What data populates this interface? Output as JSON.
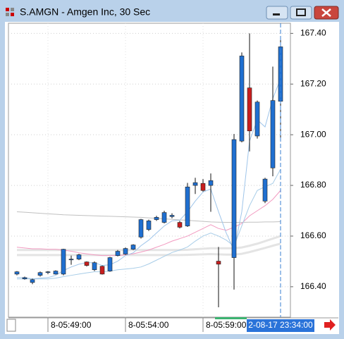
{
  "window": {
    "title": "S.AMGN - Amgen Inc, 30 Sec"
  },
  "chart_data": {
    "type": "candlestick",
    "categories": [
      null,
      null,
      null,
      null,
      "8-05:49:00",
      null,
      null,
      null,
      null,
      null,
      null,
      null,
      null,
      null,
      "8-05:54:00",
      null,
      null,
      null,
      null,
      null,
      null,
      null,
      null,
      null,
      "8-05:59:00",
      null,
      null,
      null,
      null,
      null,
      null,
      null,
      null,
      null,
      null
    ],
    "open": [
      166.45,
      166.431,
      166.417,
      166.445,
      166.456,
      166.45,
      166.45,
      166.506,
      166.509,
      166.498,
      166.467,
      166.481,
      166.462,
      166.523,
      166.529,
      166.548,
      166.596,
      166.626,
      166.665,
      166.654,
      166.677,
      166.654,
      166.64,
      166.8,
      166.808,
      166.8,
      166.501,
      null,
      166.515,
      166.975,
      167.185,
      166.995,
      166.738,
      166.869,
      167.132
    ],
    "high": [
      166.462,
      166.44,
      166.432,
      166.46,
      166.462,
      166.465,
      166.55,
      166.523,
      166.53,
      166.5,
      166.5,
      166.484,
      166.518,
      166.545,
      166.555,
      166.568,
      166.668,
      166.665,
      166.68,
      166.7,
      166.69,
      166.66,
      166.81,
      166.83,
      166.825,
      166.847,
      166.557,
      null,
      167.003,
      167.325,
      167.4,
      167.135,
      166.83,
      167.269,
      167.38
    ],
    "low": [
      166.445,
      166.428,
      166.41,
      166.44,
      166.45,
      166.448,
      166.445,
      166.487,
      166.505,
      166.48,
      166.462,
      166.448,
      166.459,
      166.52,
      166.526,
      166.545,
      166.59,
      166.62,
      166.66,
      166.65,
      166.67,
      166.63,
      166.636,
      166.766,
      166.775,
      166.696,
      166.319,
      null,
      166.389,
      166.97,
      166.934,
      166.985,
      166.73,
      166.836,
      166.989
    ],
    "close": [
      166.459,
      166.436,
      166.428,
      166.456,
      166.459,
      166.462,
      166.548,
      166.509,
      166.526,
      166.484,
      166.495,
      166.45,
      166.515,
      166.54,
      166.551,
      166.565,
      166.665,
      166.66,
      166.674,
      166.693,
      166.682,
      166.635,
      166.794,
      166.811,
      166.78,
      166.819,
      166.489,
      null,
      166.981,
      167.311,
      167.015,
      167.129,
      166.825,
      167.135,
      167.347
    ],
    "up_color": "#1f6fd0",
    "down_color": "#c81e1e",
    "lines": [
      {
        "color": "#e4e4e4",
        "width": 3,
        "values": [
          166.545,
          166.545,
          166.545,
          166.545,
          166.545,
          166.545,
          166.545,
          166.545,
          166.545,
          166.545,
          166.545,
          166.545,
          166.545,
          166.545,
          166.545,
          166.545,
          166.545,
          166.545,
          166.545,
          166.545,
          166.545,
          166.545,
          166.546,
          166.548,
          166.55,
          166.552,
          166.552,
          166.552,
          166.552,
          166.555,
          166.562,
          166.57,
          166.58,
          166.59,
          166.6
        ]
      },
      {
        "color": "#e4e4e4",
        "width": 3,
        "values": [
          166.525,
          166.525,
          166.525,
          166.525,
          166.525,
          166.525,
          166.525,
          166.525,
          166.525,
          166.525,
          166.525,
          166.525,
          166.525,
          166.525,
          166.525,
          166.525,
          166.525,
          166.525,
          166.525,
          166.525,
          166.525,
          166.525,
          166.526,
          166.527,
          166.528,
          166.529,
          166.528,
          166.527,
          166.527,
          166.53,
          166.537,
          166.545,
          166.553,
          166.562,
          166.57
        ]
      },
      {
        "color": "#c0c0c0",
        "width": 1,
        "values": [
          166.696,
          166.694,
          166.692,
          166.69,
          166.688,
          166.686,
          166.684,
          166.683,
          166.682,
          166.681,
          166.68,
          166.679,
          166.678,
          166.677,
          166.676,
          166.675,
          166.674,
          166.672,
          166.67,
          166.668,
          166.666,
          166.664,
          166.662,
          166.66,
          166.658,
          166.656,
          166.655,
          166.654,
          166.654,
          166.654,
          166.655,
          166.655,
          166.656,
          166.656,
          166.657
        ]
      },
      {
        "color": "#f29ac0",
        "width": 1,
        "values": [
          166.556,
          166.553,
          166.55,
          166.55,
          166.548,
          166.548,
          166.545,
          166.54,
          166.534,
          166.53,
          166.526,
          166.523,
          166.523,
          166.523,
          166.526,
          166.53,
          166.537,
          166.545,
          166.556,
          166.567,
          166.58,
          166.59,
          166.6,
          166.615,
          166.63,
          166.645,
          166.63,
          166.623,
          166.635,
          166.65,
          166.68,
          166.7,
          166.72,
          166.745,
          166.78
        ]
      },
      {
        "color": "#a8cde8",
        "width": 1,
        "values": [
          166.431,
          166.431,
          166.431,
          166.431,
          166.431,
          166.434,
          166.44,
          166.445,
          166.45,
          166.455,
          166.459,
          166.459,
          166.462,
          166.467,
          166.47,
          166.473,
          166.478,
          166.49,
          166.505,
          166.52,
          166.535,
          166.545,
          166.557,
          166.58,
          166.6,
          166.612,
          166.6,
          166.584,
          166.56,
          166.64,
          166.72,
          166.78,
          166.795,
          166.808,
          166.864
        ]
      },
      {
        "color": "#9fc5ea",
        "width": 1,
        "values": [
          166.436,
          166.436,
          166.431,
          166.434,
          166.436,
          166.445,
          166.464,
          166.478,
          166.489,
          166.495,
          166.495,
          166.484,
          166.487,
          166.501,
          166.523,
          166.534,
          166.562,
          166.584,
          166.612,
          166.64,
          166.66,
          166.663,
          166.696,
          166.738,
          166.774,
          166.786,
          166.696,
          166.612,
          166.543,
          166.696,
          166.975,
          167.059,
          167.031,
          167.143,
          167.221
        ]
      }
    ],
    "ylim": [
      166.28,
      167.44
    ],
    "yticks": [
      {
        "value": 166.4,
        "label": "166.40"
      },
      {
        "value": 166.6,
        "label": "166.60"
      },
      {
        "value": 166.8,
        "label": "166.80"
      },
      {
        "value": 167.0,
        "label": "167.00"
      },
      {
        "value": 167.2,
        "label": "167.20"
      },
      {
        "value": 167.4,
        "label": "167.40"
      }
    ],
    "grid": true,
    "cursor_label": "2-08-17 23:34:00"
  }
}
